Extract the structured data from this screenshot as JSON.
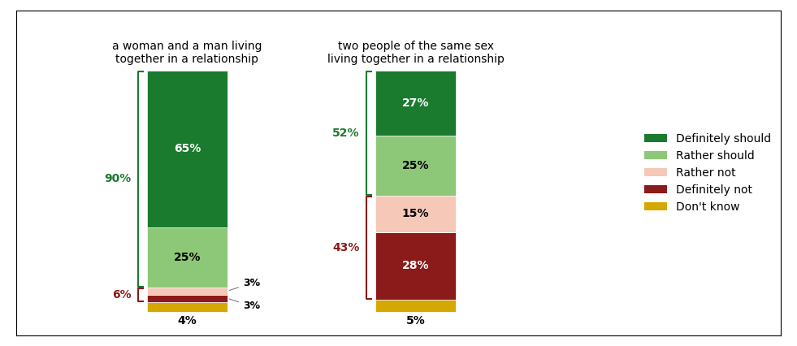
{
  "chart_data": {
    "type": "bar",
    "stacked": true,
    "categories": [
      "a woman and a man living\ntogether in a relationship",
      "two people of the same sex\nliving together in a relationship"
    ],
    "series": [
      {
        "name": "Definitely should",
        "color": "#1a7a2e",
        "values": [
          65,
          27
        ],
        "value_labels": [
          "65%",
          "27%"
        ]
      },
      {
        "name": "Rather should",
        "color": "#8dc878",
        "values": [
          25,
          25
        ],
        "value_labels": [
          "25%",
          "25%"
        ]
      },
      {
        "name": "Rather not",
        "color": "#f5c8b8",
        "values": [
          3,
          15
        ],
        "value_labels": [
          "3%",
          "15%"
        ]
      },
      {
        "name": "Definitely not",
        "color": "#8b1a1a",
        "values": [
          3,
          28
        ],
        "value_labels": [
          "3%",
          "28%"
        ]
      },
      {
        "name": "Don't know",
        "color": "#d4a800",
        "values": [
          4,
          5
        ],
        "value_labels": [
          "4%",
          "5%"
        ]
      }
    ],
    "data_labels": true,
    "brackets": [
      {
        "series": [
          "Definitely should",
          "Rather should"
        ],
        "color": "#1a7a2e",
        "values": [
          90,
          52
        ],
        "value_labels": [
          "90%",
          "52%"
        ]
      },
      {
        "series": [
          "Rather not",
          "Definitely not"
        ],
        "color": "#8b1a1a",
        "values": [
          6,
          43
        ],
        "value_labels": [
          "6%",
          "43%"
        ]
      }
    ],
    "ylim": [
      -10,
      125
    ],
    "yticks": [],
    "tick_labels": false,
    "legend": "center right"
  }
}
